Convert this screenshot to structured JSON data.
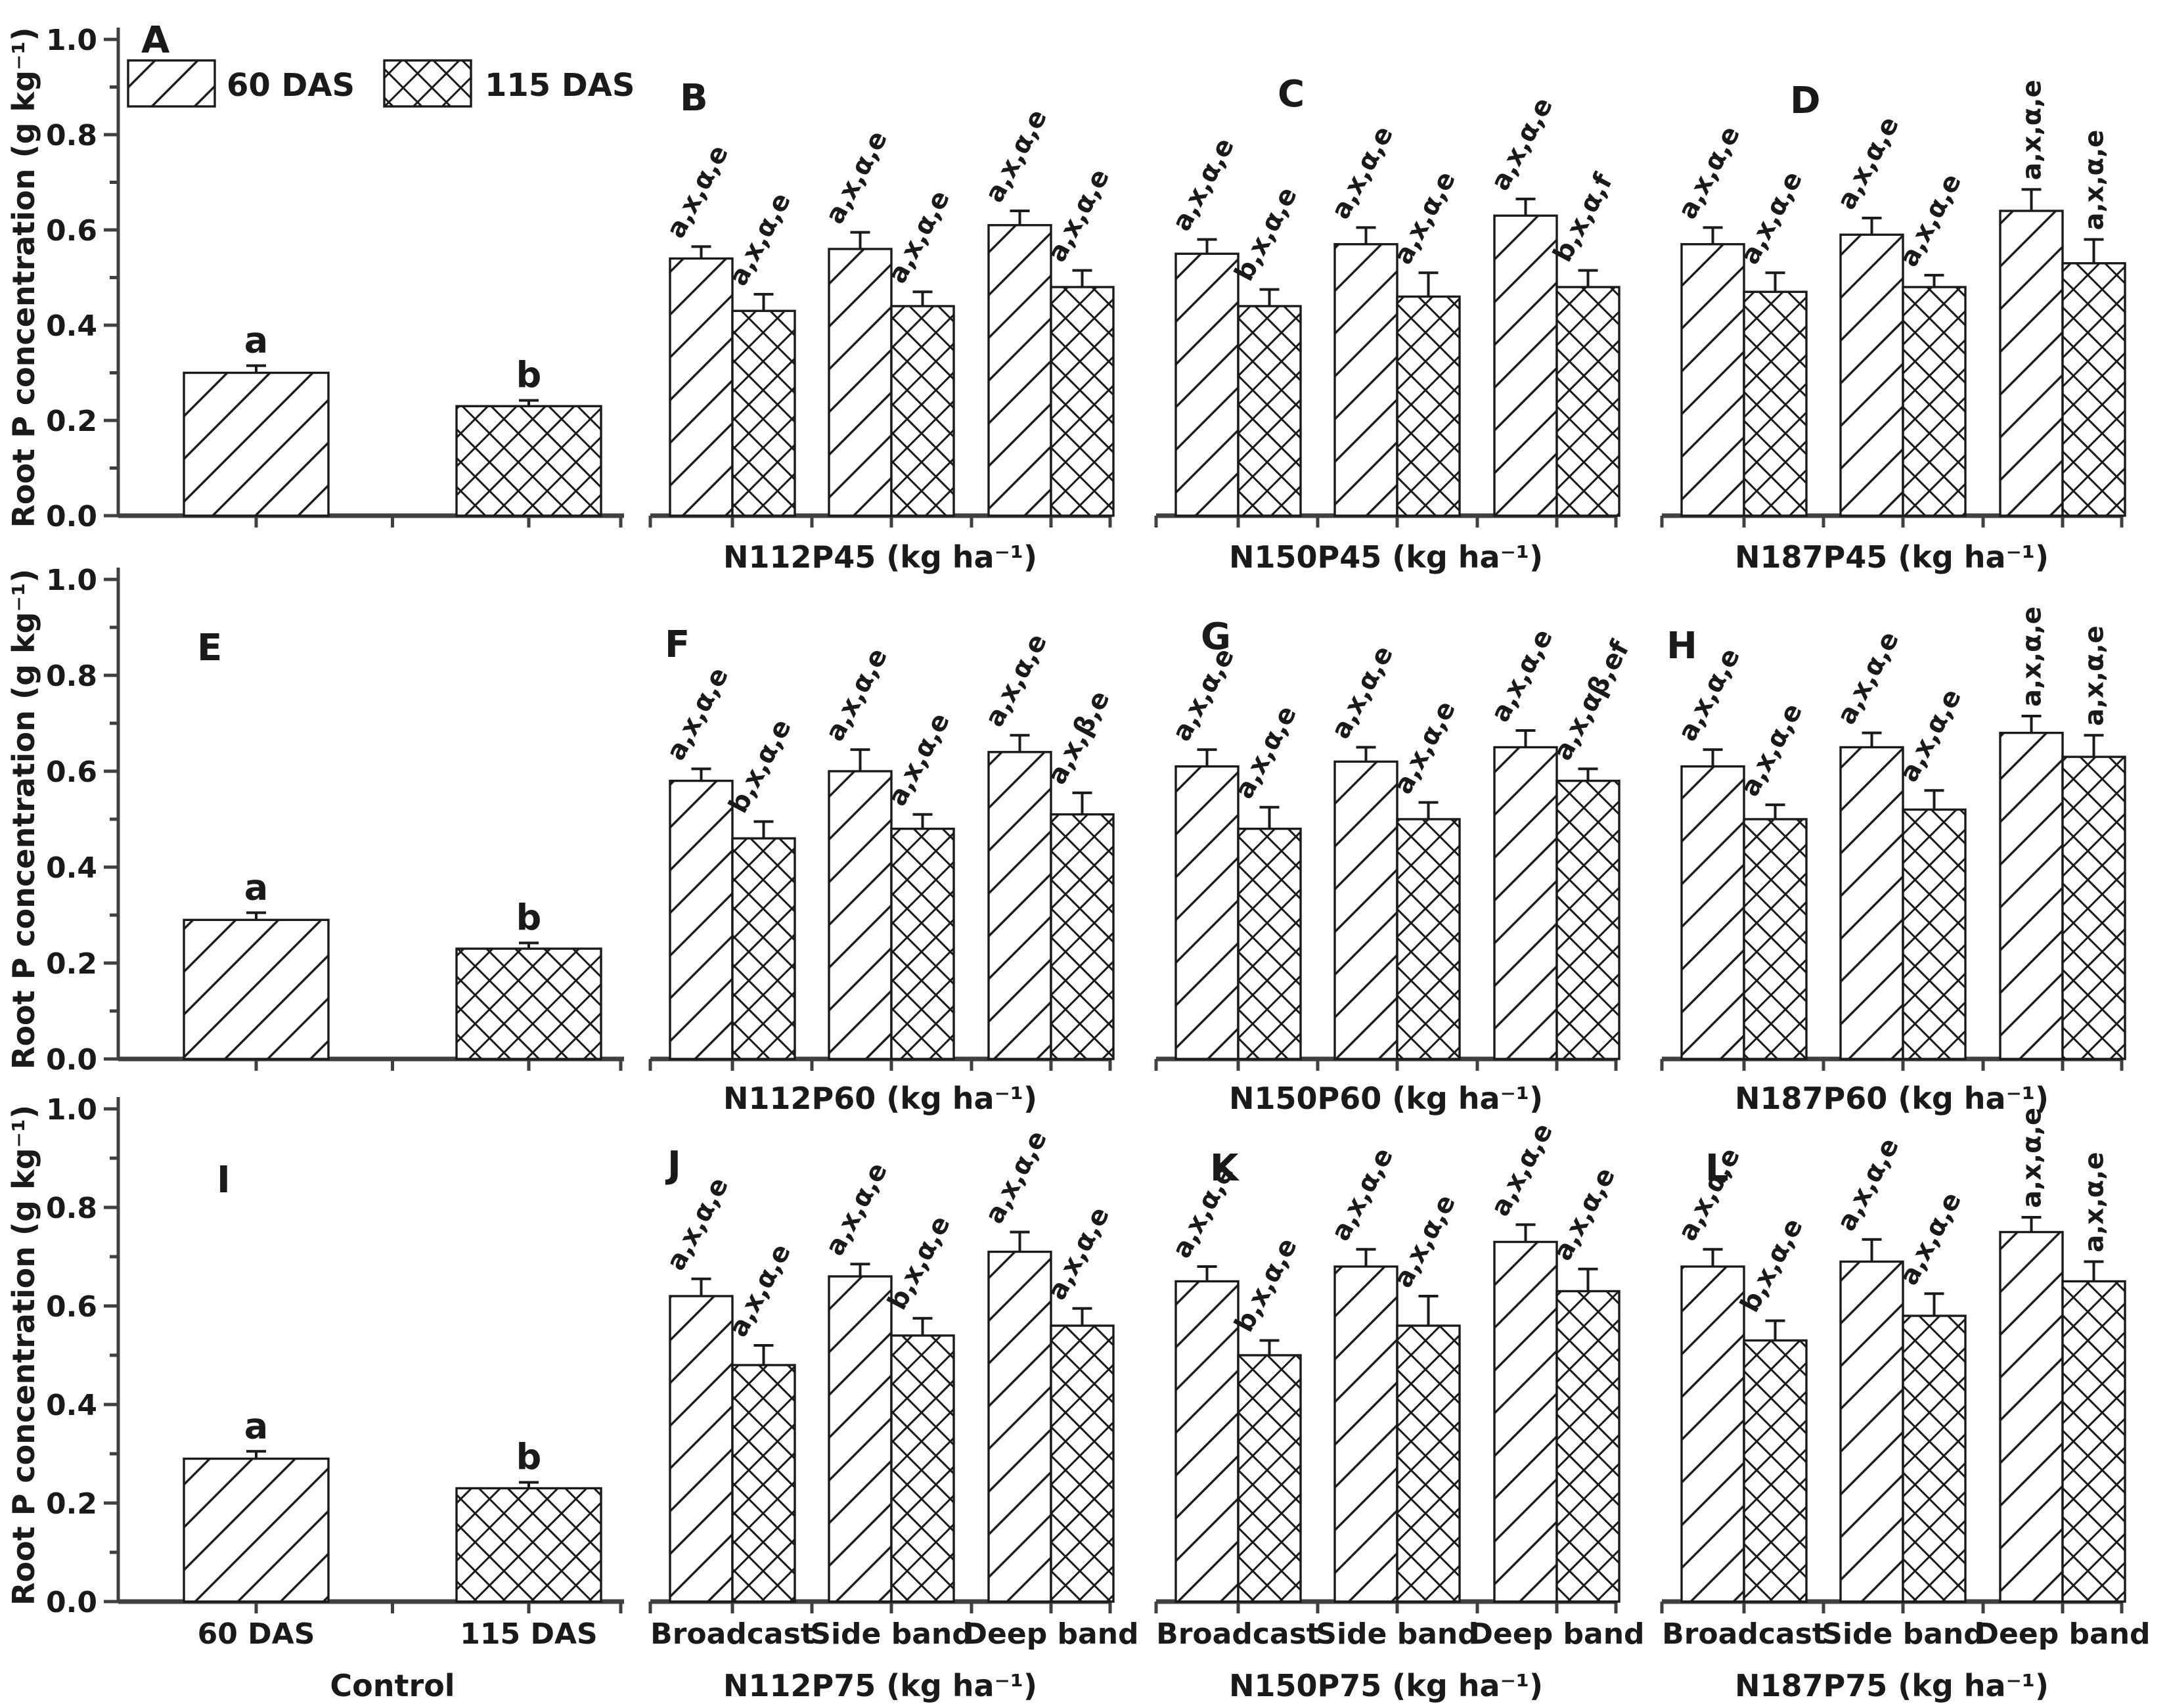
{
  "figure": {
    "background": "#ffffff",
    "ink_color": "#1a1a1a",
    "axis_color": "#404040",
    "ylabel": "Root P concentration (g kg⁻¹)",
    "yticks": [
      "0.0",
      "0.2",
      "0.4",
      "0.6",
      "0.8",
      "1.0"
    ],
    "ylim": [
      0.0,
      1.0
    ],
    "legend": [
      {
        "label": "60 DAS",
        "pattern": "diagonal-hatch"
      },
      {
        "label": "115 DAS",
        "pattern": "cross-hatch"
      }
    ]
  },
  "chart_data": [
    {
      "type": "bar",
      "panel": "A",
      "kind": "control",
      "xlabel": "",
      "tick_labels": [],
      "groups": [
        {
          "label": "60 DAS",
          "bars": [
            {
              "series": "60 DAS",
              "value": 0.3,
              "err": 0.015,
              "sig": "a",
              "rot": 0
            }
          ]
        },
        {
          "label": "115 DAS",
          "bars": [
            {
              "series": "115 DAS",
              "value": 0.23,
              "err": 0.012,
              "sig": "b",
              "rot": 0
            }
          ]
        }
      ]
    },
    {
      "type": "bar",
      "panel": "B",
      "kind": "treatment",
      "xlabel": "N112P45 (kg ha⁻¹)",
      "tick_labels": [],
      "groups": [
        {
          "label": "Broadcast",
          "bars": [
            {
              "series": "60 DAS",
              "value": 0.54,
              "err": 0.025,
              "sig": "a,x,α,e",
              "rot": -62
            },
            {
              "series": "115 DAS",
              "value": 0.43,
              "err": 0.035,
              "sig": "a,x,α,e",
              "rot": -62
            }
          ]
        },
        {
          "label": "Side band",
          "bars": [
            {
              "series": "60 DAS",
              "value": 0.56,
              "err": 0.035,
              "sig": "a,x,α,e",
              "rot": -62
            },
            {
              "series": "115 DAS",
              "value": 0.44,
              "err": 0.03,
              "sig": "a,x,α,e",
              "rot": -62
            }
          ]
        },
        {
          "label": "Deep band",
          "bars": [
            {
              "series": "60 DAS",
              "value": 0.61,
              "err": 0.03,
              "sig": "a,x,α,e",
              "rot": -62
            },
            {
              "series": "115 DAS",
              "value": 0.48,
              "err": 0.035,
              "sig": "a,x,α,e",
              "rot": -62
            }
          ]
        }
      ]
    },
    {
      "type": "bar",
      "panel": "C",
      "kind": "treatment",
      "xlabel": "N150P45 (kg ha⁻¹)",
      "tick_labels": [],
      "groups": [
        {
          "label": "Broadcast",
          "bars": [
            {
              "series": "60 DAS",
              "value": 0.55,
              "err": 0.03,
              "sig": "a,x,α,e",
              "rot": -62
            },
            {
              "series": "115 DAS",
              "value": 0.44,
              "err": 0.035,
              "sig": "b,x,α,e",
              "rot": -62
            }
          ]
        },
        {
          "label": "Side band",
          "bars": [
            {
              "series": "60 DAS",
              "value": 0.57,
              "err": 0.035,
              "sig": "a,x,α,e",
              "rot": -62
            },
            {
              "series": "115 DAS",
              "value": 0.46,
              "err": 0.05,
              "sig": "a,x,α,e",
              "rot": -62
            }
          ]
        },
        {
          "label": "Deep band",
          "bars": [
            {
              "series": "60 DAS",
              "value": 0.63,
              "err": 0.035,
              "sig": "a,x,α,e",
              "rot": -62
            },
            {
              "series": "115 DAS",
              "value": 0.48,
              "err": 0.035,
              "sig": "b,x,α,f",
              "rot": -62
            }
          ]
        }
      ]
    },
    {
      "type": "bar",
      "panel": "D",
      "kind": "treatment",
      "xlabel": "N187P45 (kg ha⁻¹)",
      "tick_labels": [],
      "groups": [
        {
          "label": "Broadcast",
          "bars": [
            {
              "series": "60 DAS",
              "value": 0.57,
              "err": 0.035,
              "sig": "a,x,α,e",
              "rot": -62
            },
            {
              "series": "115 DAS",
              "value": 0.47,
              "err": 0.04,
              "sig": "a,x,α,e",
              "rot": -62
            }
          ]
        },
        {
          "label": "Side band",
          "bars": [
            {
              "series": "60 DAS",
              "value": 0.59,
              "err": 0.035,
              "sig": "a,x,α,e",
              "rot": -62
            },
            {
              "series": "115 DAS",
              "value": 0.48,
              "err": 0.025,
              "sig": "a,x,α,e",
              "rot": -62
            }
          ]
        },
        {
          "label": "Deep band",
          "bars": [
            {
              "series": "60 DAS",
              "value": 0.64,
              "err": 0.045,
              "sig": "a,x,α,e",
              "rot": -90
            },
            {
              "series": "115 DAS",
              "value": 0.53,
              "err": 0.05,
              "sig": "a,x,α,e",
              "rot": -90
            }
          ]
        }
      ]
    },
    {
      "type": "bar",
      "panel": "E",
      "kind": "control",
      "xlabel": "",
      "tick_labels": [],
      "groups": [
        {
          "label": "60 DAS",
          "bars": [
            {
              "series": "60 DAS",
              "value": 0.29,
              "err": 0.015,
              "sig": "a",
              "rot": 0
            }
          ]
        },
        {
          "label": "115 DAS",
          "bars": [
            {
              "series": "115 DAS",
              "value": 0.23,
              "err": 0.012,
              "sig": "b",
              "rot": 0
            }
          ]
        }
      ]
    },
    {
      "type": "bar",
      "panel": "F",
      "kind": "treatment",
      "xlabel": "N112P60 (kg ha⁻¹)",
      "tick_labels": [],
      "groups": [
        {
          "label": "Broadcast",
          "bars": [
            {
              "series": "60 DAS",
              "value": 0.58,
              "err": 0.025,
              "sig": "a,x,α,e",
              "rot": -62
            },
            {
              "series": "115 DAS",
              "value": 0.46,
              "err": 0.035,
              "sig": "b,x,α,e",
              "rot": -62
            }
          ]
        },
        {
          "label": "Side band",
          "bars": [
            {
              "series": "60 DAS",
              "value": 0.6,
              "err": 0.045,
              "sig": "a,x,α,e",
              "rot": -62
            },
            {
              "series": "115 DAS",
              "value": 0.48,
              "err": 0.03,
              "sig": "a,x,α,e",
              "rot": -62
            }
          ]
        },
        {
          "label": "Deep band",
          "bars": [
            {
              "series": "60 DAS",
              "value": 0.64,
              "err": 0.035,
              "sig": "a,x,α,e",
              "rot": -62
            },
            {
              "series": "115 DAS",
              "value": 0.51,
              "err": 0.045,
              "sig": "a,x,β,e",
              "rot": -62
            }
          ]
        }
      ]
    },
    {
      "type": "bar",
      "panel": "G",
      "kind": "treatment",
      "xlabel": "N150P60 (kg ha⁻¹)",
      "tick_labels": [],
      "groups": [
        {
          "label": "Broadcast",
          "bars": [
            {
              "series": "60 DAS",
              "value": 0.61,
              "err": 0.035,
              "sig": "a,x,α,e",
              "rot": -62
            },
            {
              "series": "115 DAS",
              "value": 0.48,
              "err": 0.045,
              "sig": "a,x,α,e",
              "rot": -62
            }
          ]
        },
        {
          "label": "Side band",
          "bars": [
            {
              "series": "60 DAS",
              "value": 0.62,
              "err": 0.03,
              "sig": "a,x,α,e",
              "rot": -62
            },
            {
              "series": "115 DAS",
              "value": 0.5,
              "err": 0.035,
              "sig": "a,x,α,e",
              "rot": -62
            }
          ]
        },
        {
          "label": "Deep band",
          "bars": [
            {
              "series": "60 DAS",
              "value": 0.65,
              "err": 0.035,
              "sig": "a,x,α,e",
              "rot": -62
            },
            {
              "series": "115 DAS",
              "value": 0.58,
              "err": 0.025,
              "sig": "a,x,αβ,ef",
              "rot": -62
            }
          ]
        }
      ]
    },
    {
      "type": "bar",
      "panel": "H",
      "kind": "treatment",
      "xlabel": "N187P60 (kg ha⁻¹)",
      "tick_labels": [],
      "groups": [
        {
          "label": "Broadcast",
          "bars": [
            {
              "series": "60 DAS",
              "value": 0.61,
              "err": 0.035,
              "sig": "a,x,α,e",
              "rot": -62
            },
            {
              "series": "115 DAS",
              "value": 0.5,
              "err": 0.03,
              "sig": "a,x,α,e",
              "rot": -62
            }
          ]
        },
        {
          "label": "Side band",
          "bars": [
            {
              "series": "60 DAS",
              "value": 0.65,
              "err": 0.03,
              "sig": "a,x,α,e",
              "rot": -62
            },
            {
              "series": "115 DAS",
              "value": 0.52,
              "err": 0.04,
              "sig": "a,x,α,e",
              "rot": -62
            }
          ]
        },
        {
          "label": "Deep band",
          "bars": [
            {
              "series": "60 DAS",
              "value": 0.68,
              "err": 0.035,
              "sig": "a,x,α,e",
              "rot": -90
            },
            {
              "series": "115 DAS",
              "value": 0.63,
              "err": 0.045,
              "sig": "a,x,α,e",
              "rot": -90
            }
          ]
        }
      ]
    },
    {
      "type": "bar",
      "panel": "I",
      "kind": "control",
      "xlabel": "Control",
      "tick_labels": [
        "60 DAS",
        "115 DAS"
      ],
      "groups": [
        {
          "label": "60 DAS",
          "bars": [
            {
              "series": "60 DAS",
              "value": 0.29,
              "err": 0.015,
              "sig": "a",
              "rot": 0
            }
          ]
        },
        {
          "label": "115 DAS",
          "bars": [
            {
              "series": "115 DAS",
              "value": 0.23,
              "err": 0.012,
              "sig": "b",
              "rot": 0
            }
          ]
        }
      ]
    },
    {
      "type": "bar",
      "panel": "J",
      "kind": "treatment",
      "xlabel": "N112P75 (kg ha⁻¹)",
      "tick_labels": [
        "Broadcast",
        "Side band",
        "Deep band"
      ],
      "groups": [
        {
          "label": "Broadcast",
          "bars": [
            {
              "series": "60 DAS",
              "value": 0.62,
              "err": 0.035,
              "sig": "a,x,α,e",
              "rot": -62
            },
            {
              "series": "115 DAS",
              "value": 0.48,
              "err": 0.04,
              "sig": "a,x,α,e",
              "rot": -62
            }
          ]
        },
        {
          "label": "Side band",
          "bars": [
            {
              "series": "60 DAS",
              "value": 0.66,
              "err": 0.025,
              "sig": "a,x,α,e",
              "rot": -62
            },
            {
              "series": "115 DAS",
              "value": 0.54,
              "err": 0.035,
              "sig": "b,x,α,e",
              "rot": -62
            }
          ]
        },
        {
          "label": "Deep band",
          "bars": [
            {
              "series": "60 DAS",
              "value": 0.71,
              "err": 0.04,
              "sig": "a,x,α,e",
              "rot": -62
            },
            {
              "series": "115 DAS",
              "value": 0.56,
              "err": 0.035,
              "sig": "a,x,α,e",
              "rot": -62
            }
          ]
        }
      ]
    },
    {
      "type": "bar",
      "panel": "K",
      "kind": "treatment",
      "xlabel": "N150P75 (kg ha⁻¹)",
      "tick_labels": [
        "Broadcast",
        "Side band",
        "Deep band"
      ],
      "groups": [
        {
          "label": "Broadcast",
          "bars": [
            {
              "series": "60 DAS",
              "value": 0.65,
              "err": 0.03,
              "sig": "a,x,α,e",
              "rot": -62
            },
            {
              "series": "115 DAS",
              "value": 0.5,
              "err": 0.03,
              "sig": "b,x,α,e",
              "rot": -62
            }
          ]
        },
        {
          "label": "Side band",
          "bars": [
            {
              "series": "60 DAS",
              "value": 0.68,
              "err": 0.035,
              "sig": "a,x,α,e",
              "rot": -62
            },
            {
              "series": "115 DAS",
              "value": 0.56,
              "err": 0.06,
              "sig": "a,x,α,e",
              "rot": -62
            }
          ]
        },
        {
          "label": "Deep band",
          "bars": [
            {
              "series": "60 DAS",
              "value": 0.73,
              "err": 0.035,
              "sig": "a,x,α,e",
              "rot": -62
            },
            {
              "series": "115 DAS",
              "value": 0.63,
              "err": 0.045,
              "sig": "a,x,α,e",
              "rot": -62
            }
          ]
        }
      ]
    },
    {
      "type": "bar",
      "panel": "L",
      "kind": "treatment",
      "xlabel": "N187P75 (kg ha⁻¹)",
      "tick_labels": [
        "Broadcast",
        "Side band",
        "Deep band"
      ],
      "groups": [
        {
          "label": "Broadcast",
          "bars": [
            {
              "series": "60 DAS",
              "value": 0.68,
              "err": 0.035,
              "sig": "a,x,α,e",
              "rot": -62
            },
            {
              "series": "115 DAS",
              "value": 0.53,
              "err": 0.04,
              "sig": "b,x,α,e",
              "rot": -62
            }
          ]
        },
        {
          "label": "Side band",
          "bars": [
            {
              "series": "60 DAS",
              "value": 0.69,
              "err": 0.045,
              "sig": "a,x,α,e",
              "rot": -62
            },
            {
              "series": "115 DAS",
              "value": 0.58,
              "err": 0.045,
              "sig": "a,x,α,e",
              "rot": -62
            }
          ]
        },
        {
          "label": "Deep band",
          "bars": [
            {
              "series": "60 DAS",
              "value": 0.75,
              "err": 0.03,
              "sig": "a,x,α,e",
              "rot": -90
            },
            {
              "series": "115 DAS",
              "value": 0.65,
              "err": 0.04,
              "sig": "a,x,α,e",
              "rot": -90
            }
          ]
        }
      ]
    }
  ]
}
